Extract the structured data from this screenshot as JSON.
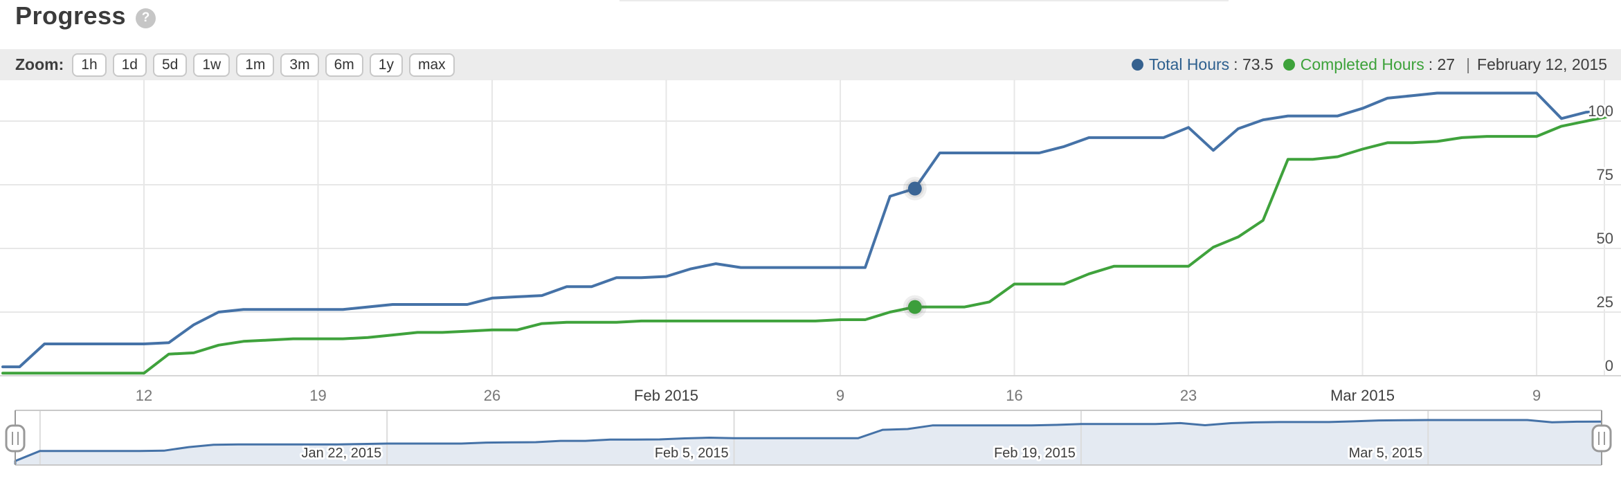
{
  "page": {
    "title": "Progress",
    "help_glyph": "?"
  },
  "toolbar": {
    "zoom_label": "Zoom:",
    "zoom_buttons": [
      "1h",
      "1d",
      "5d",
      "1w",
      "1m",
      "3m",
      "6m",
      "1y",
      "max"
    ],
    "legend": [
      {
        "name": "Total Hours",
        "value": "73.5",
        "dot_color": "#35618f",
        "text_color": "#2d5f8e"
      },
      {
        "name": "Completed Hours",
        "value": "27",
        "dot_color": "#3da23a",
        "text_color": "#3da23a"
      }
    ],
    "separator": "|",
    "current_date": "February 12, 2015"
  },
  "chart_data": {
    "type": "line",
    "title": "Progress",
    "ylim": [
      0,
      116
    ],
    "yticks": [
      0,
      25,
      50,
      75,
      100
    ],
    "grid": true,
    "legend_position": "top-right",
    "xticks": [
      {
        "day": 5,
        "label": "12",
        "emphasis": false
      },
      {
        "day": 12,
        "label": "19",
        "emphasis": false
      },
      {
        "day": 19,
        "label": "26",
        "emphasis": false
      },
      {
        "day": 26,
        "label": "Feb 2015",
        "emphasis": true
      },
      {
        "day": 33,
        "label": "9",
        "emphasis": false
      },
      {
        "day": 40,
        "label": "16",
        "emphasis": false
      },
      {
        "day": 47,
        "label": "23",
        "emphasis": false
      },
      {
        "day": 54,
        "label": "Mar 2015",
        "emphasis": true
      },
      {
        "day": 61,
        "label": "9",
        "emphasis": false
      }
    ],
    "series": [
      {
        "name": "Total Hours",
        "color": "#4572A7",
        "marker_color": "#3a6595",
        "values": [
          3.5,
          12.5,
          12.5,
          12.5,
          12.5,
          12.5,
          13,
          20,
          25,
          26,
          26,
          26,
          26,
          26,
          27,
          28,
          28,
          28,
          28,
          30.5,
          31,
          31.5,
          35,
          35,
          38.5,
          38.5,
          39,
          42,
          44,
          42.5,
          42.5,
          42.5,
          42.5,
          42.5,
          42.5,
          70.5,
          73.5,
          87.5,
          87.5,
          87.5,
          87.5,
          87.5,
          90,
          93.5,
          93.5,
          93.5,
          93.5,
          97.5,
          88.5,
          97,
          100.5,
          102,
          102,
          102,
          105,
          109,
          110,
          111,
          111,
          111,
          111,
          111,
          101,
          103.5,
          104
        ]
      },
      {
        "name": "Completed Hours",
        "color": "#3FA23C",
        "marker_color": "#3c9e3b",
        "values": [
          1,
          1,
          1,
          1,
          1,
          1,
          8.5,
          9,
          12,
          13.5,
          14,
          14.5,
          14.5,
          14.5,
          15,
          16,
          17,
          17,
          17.5,
          18,
          18,
          20.5,
          21,
          21,
          21,
          21.5,
          21.5,
          21.5,
          21.5,
          21.5,
          21.5,
          21.5,
          21.5,
          22,
          22,
          25,
          27,
          27,
          27,
          29,
          36,
          36,
          36,
          40,
          43,
          43,
          43,
          43,
          50.5,
          54.5,
          61,
          85,
          85,
          86,
          89,
          91.5,
          91.5,
          92,
          93.5,
          94,
          94,
          94,
          98,
          100,
          102
        ]
      }
    ],
    "marker_day": 36,
    "marker_values": {
      "Total Hours": 73.5,
      "Completed Hours": 27
    }
  },
  "navigator": {
    "fill_color": "#e4eaf2",
    "line_color": "#4572A7",
    "ticks": [
      {
        "day": 1,
        "label": ""
      },
      {
        "day": 15,
        "label": "Jan 22, 2015"
      },
      {
        "day": 29,
        "label": "Feb 5, 2015"
      },
      {
        "day": 43,
        "label": "Feb 19, 2015"
      },
      {
        "day": 57,
        "label": "Mar 5, 2015"
      }
    ]
  }
}
